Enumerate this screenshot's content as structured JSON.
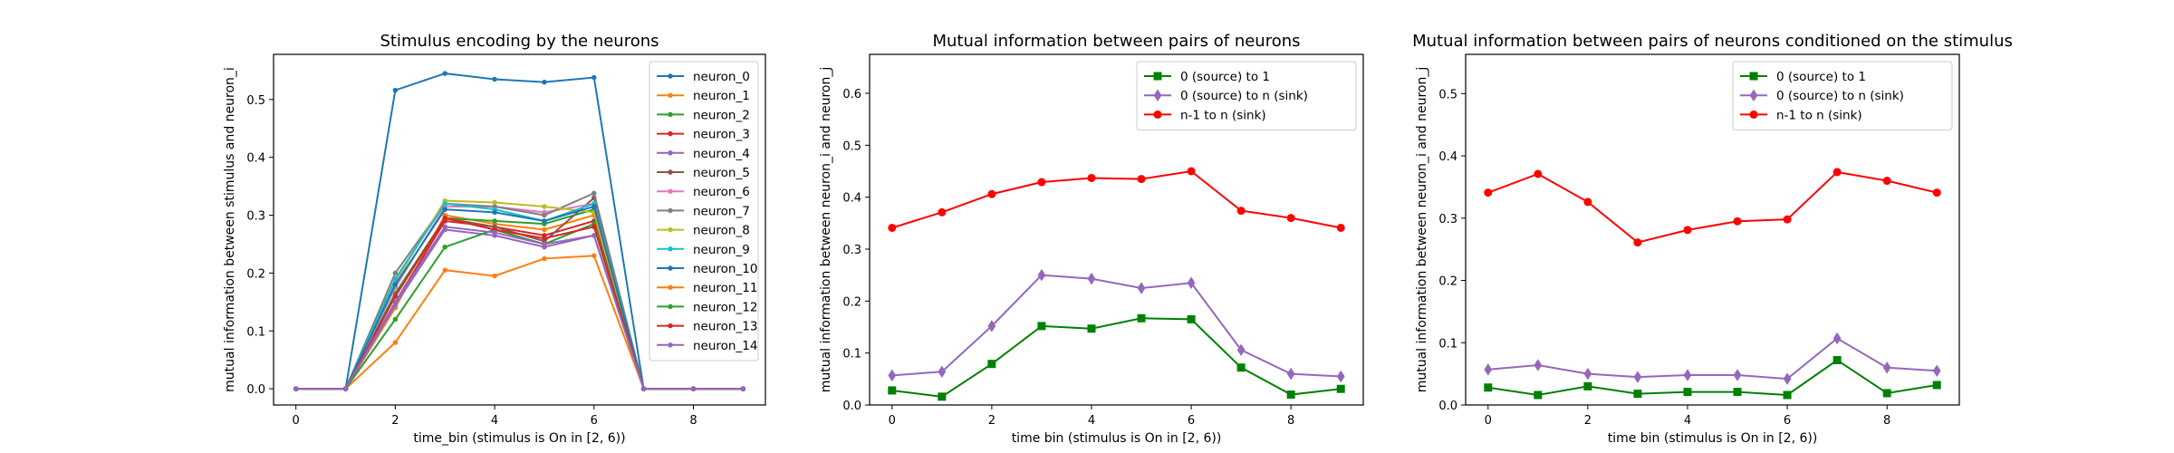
{
  "chart_data": [
    {
      "type": "line",
      "title": "Stimulus encoding by the neurons",
      "xlabel": "time_bin (stimulus is On in [2, 6))",
      "ylabel": "mutual information between stimulus and neuron_i",
      "xlim": [
        -0.45,
        9.45
      ],
      "ylim": [
        -0.028,
        0.578
      ],
      "xticks": [
        0,
        2,
        4,
        6,
        8
      ],
      "yticks": [
        0.0,
        0.1,
        0.2,
        0.3,
        0.4,
        0.5
      ],
      "grid": false,
      "legend_position": "upper right",
      "x": [
        0,
        1,
        2,
        3,
        4,
        5,
        6,
        7,
        8,
        9
      ],
      "series": [
        {
          "name": "neuron_0",
          "color": "#1f77b4",
          "marker": "dot",
          "values": [
            0,
            0,
            0.516,
            0.545,
            0.535,
            0.53,
            0.538,
            0,
            0,
            0
          ]
        },
        {
          "name": "neuron_1",
          "color": "#ff7f0e",
          "marker": "dot",
          "values": [
            0,
            0,
            0.14,
            0.3,
            0.285,
            0.275,
            0.3,
            0,
            0,
            0
          ]
        },
        {
          "name": "neuron_2",
          "color": "#2ca02c",
          "marker": "dot",
          "values": [
            0,
            0,
            0.165,
            0.295,
            0.29,
            0.285,
            0.31,
            0,
            0,
            0
          ]
        },
        {
          "name": "neuron_3",
          "color": "#d62728",
          "marker": "dot",
          "values": [
            0,
            0,
            0.15,
            0.29,
            0.28,
            0.265,
            0.29,
            0,
            0,
            0
          ]
        },
        {
          "name": "neuron_4",
          "color": "#9467bd",
          "marker": "dot",
          "values": [
            0,
            0,
            0.145,
            0.275,
            0.265,
            0.245,
            0.265,
            0,
            0,
            0
          ]
        },
        {
          "name": "neuron_5",
          "color": "#8c564b",
          "marker": "dot",
          "values": [
            0,
            0,
            0.16,
            0.295,
            0.28,
            0.255,
            0.33,
            0,
            0,
            0
          ]
        },
        {
          "name": "neuron_6",
          "color": "#e377c2",
          "marker": "dot",
          "values": [
            0,
            0,
            0.175,
            0.315,
            0.315,
            0.305,
            0.32,
            0,
            0,
            0
          ]
        },
        {
          "name": "neuron_7",
          "color": "#7f7f7f",
          "marker": "dot",
          "values": [
            0,
            0,
            0.2,
            0.32,
            0.315,
            0.3,
            0.338,
            0,
            0,
            0
          ]
        },
        {
          "name": "neuron_8",
          "color": "#bcbd22",
          "marker": "dot",
          "values": [
            0,
            0,
            0.185,
            0.325,
            0.322,
            0.315,
            0.305,
            0,
            0,
            0
          ]
        },
        {
          "name": "neuron_9",
          "color": "#17becf",
          "marker": "dot",
          "values": [
            0,
            0,
            0.19,
            0.32,
            0.31,
            0.29,
            0.32,
            0,
            0,
            0
          ]
        },
        {
          "name": "neuron_10",
          "color": "#1f77b4",
          "marker": "dot",
          "values": [
            0,
            0,
            0.18,
            0.31,
            0.305,
            0.29,
            0.315,
            0,
            0,
            0
          ]
        },
        {
          "name": "neuron_11",
          "color": "#ff7f0e",
          "marker": "dot",
          "values": [
            0,
            0,
            0.08,
            0.205,
            0.195,
            0.225,
            0.23,
            0,
            0,
            0
          ]
        },
        {
          "name": "neuron_12",
          "color": "#2ca02c",
          "marker": "dot",
          "values": [
            0,
            0,
            0.12,
            0.245,
            0.275,
            0.25,
            0.285,
            0,
            0,
            0
          ]
        },
        {
          "name": "neuron_13",
          "color": "#d62728",
          "marker": "dot",
          "values": [
            0,
            0,
            0.16,
            0.295,
            0.275,
            0.26,
            0.28,
            0,
            0,
            0
          ]
        },
        {
          "name": "neuron_14",
          "color": "#9467bd",
          "marker": "dot",
          "values": [
            0,
            0,
            0.15,
            0.28,
            0.27,
            0.25,
            0.265,
            0,
            0,
            0
          ]
        }
      ]
    },
    {
      "type": "line",
      "title": "Mutual information between pairs of neurons",
      "xlabel": "time bin (stimulus is On in [2, 6))",
      "ylabel": "mutual information between neuron_i and neuron_j",
      "xlim": [
        -0.45,
        9.45
      ],
      "ylim": [
        0.0,
        0.675
      ],
      "xticks": [
        0,
        2,
        4,
        6,
        8
      ],
      "yticks": [
        0.0,
        0.1,
        0.2,
        0.3,
        0.4,
        0.5,
        0.6
      ],
      "grid": false,
      "legend_position": "upper right",
      "x": [
        0,
        1,
        2,
        3,
        4,
        5,
        6,
        7,
        8,
        9
      ],
      "series": [
        {
          "name": "0 (source) to 1",
          "color": "#008000",
          "marker": "square",
          "values": [
            0.028,
            0.016,
            0.079,
            0.152,
            0.147,
            0.167,
            0.165,
            0.072,
            0.02,
            0.031
          ]
        },
        {
          "name": "0 (source) to n (sink)",
          "color": "#9467bd",
          "marker": "diamond",
          "values": [
            0.057,
            0.064,
            0.152,
            0.25,
            0.243,
            0.225,
            0.235,
            0.106,
            0.06,
            0.055
          ]
        },
        {
          "name": "n-1 to n (sink)",
          "color": "#ff0000",
          "marker": "circle",
          "values": [
            0.341,
            0.371,
            0.406,
            0.429,
            0.437,
            0.435,
            0.45,
            0.374,
            0.36,
            0.341
          ]
        }
      ]
    },
    {
      "type": "line",
      "title": "Mutual information between pairs of neurons conditioned on the stimulus",
      "xlabel": "time bin (stimulus is On in [2, 6))",
      "ylabel": "mutual information between neuron_i and neuron_j",
      "xlim": [
        -0.45,
        9.45
      ],
      "ylim": [
        0.0,
        0.563
      ],
      "xticks": [
        0,
        2,
        4,
        6,
        8
      ],
      "yticks": [
        0.0,
        0.1,
        0.2,
        0.3,
        0.4,
        0.5
      ],
      "grid": false,
      "legend_position": "upper right",
      "x": [
        0,
        1,
        2,
        3,
        4,
        5,
        6,
        7,
        8,
        9
      ],
      "series": [
        {
          "name": "0 (source) to 1",
          "color": "#008000",
          "marker": "square",
          "values": [
            0.028,
            0.016,
            0.03,
            0.018,
            0.021,
            0.021,
            0.016,
            0.072,
            0.019,
            0.032
          ]
        },
        {
          "name": "0 (source) to n (sink)",
          "color": "#9467bd",
          "marker": "diamond",
          "values": [
            0.057,
            0.064,
            0.05,
            0.045,
            0.048,
            0.048,
            0.042,
            0.107,
            0.06,
            0.055
          ]
        },
        {
          "name": "n-1 to n (sink)",
          "color": "#ff0000",
          "marker": "circle",
          "values": [
            0.341,
            0.371,
            0.326,
            0.261,
            0.281,
            0.295,
            0.298,
            0.374,
            0.36,
            0.341
          ]
        }
      ]
    }
  ]
}
